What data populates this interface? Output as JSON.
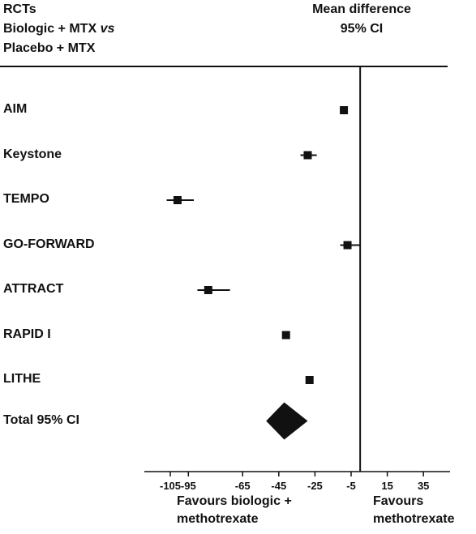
{
  "header": {
    "left_lines": [
      "RCTs",
      "Biologic + MTX vs",
      "Placebo + MTX"
    ],
    "right_lines": [
      "Mean difference",
      "95% CI"
    ]
  },
  "chart_data": {
    "type": "forest",
    "studies": [
      {
        "label": "AIM",
        "mean": -9,
        "ci": [
          -11,
          -7
        ]
      },
      {
        "label": "Keystone",
        "mean": -29,
        "ci": [
          -33,
          -24
        ]
      },
      {
        "label": "TEMPO",
        "mean": -101,
        "ci": [
          -107,
          -92
        ]
      },
      {
        "label": "GO-FORWARD",
        "mean": -7,
        "ci": [
          -11,
          0
        ]
      },
      {
        "label": "ATTRACT",
        "mean": -84,
        "ci": [
          -90,
          -72
        ]
      },
      {
        "label": "RAPID I",
        "mean": -41,
        "ci": [
          -42,
          -40
        ]
      },
      {
        "label": "LITHE",
        "mean": -28,
        "ci": [
          -30,
          -26
        ]
      }
    ],
    "total": {
      "label": "Total 95% CI",
      "mean": -42,
      "ci": [
        -52,
        -29
      ]
    },
    "xticks": [
      -105,
      -95,
      -65,
      -45,
      -25,
      -5,
      15,
      35
    ],
    "xlim": [
      -105,
      35
    ],
    "reference_line": 0,
    "axis_notes": {
      "left": [
        "Favours biologic +",
        "methotrexate"
      ],
      "right": [
        "Favours",
        "methotrexate"
      ]
    }
  }
}
